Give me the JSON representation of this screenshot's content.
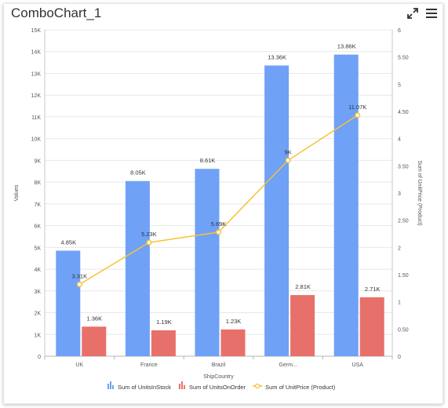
{
  "widget": {
    "title": "ComboChart_1"
  },
  "toolbar": {
    "expand_icon": "expand-icon",
    "menu_icon": "hamburger-menu-icon"
  },
  "chart_data": {
    "type": "bar",
    "categories": [
      "UK",
      "France",
      "Brazil",
      "Germ...",
      "USA"
    ],
    "xlabel": "ShipCountry",
    "ylabel": "Values",
    "y2label": "Sum of UnitPrice (Product)",
    "ylim": [
      0,
      15000
    ],
    "y2lim": [
      0,
      6
    ],
    "yticks": [
      "0",
      "1K",
      "2K",
      "3K",
      "4K",
      "5K",
      "6K",
      "7K",
      "8K",
      "9K",
      "10K",
      "11K",
      "12K",
      "13K",
      "14K",
      "15K"
    ],
    "y2ticks": [
      "0",
      "0.50",
      "1",
      "1.50",
      "2",
      "2.50",
      "3",
      "3.50",
      "4",
      "4.50",
      "5",
      "5.50",
      "6"
    ],
    "grid": true,
    "legend_position": "bottom",
    "series": [
      {
        "name": "Sum of UnitsInStock",
        "type": "bar",
        "axis": "primary",
        "color": "#6fa1f6",
        "values": [
          4850,
          8050,
          8610,
          13360,
          13860
        ],
        "labels": [
          "4.85K",
          "8.05K",
          "8.61K",
          "13.36K",
          "13.86K"
        ]
      },
      {
        "name": "Sum of UnitsOnOrder",
        "type": "bar",
        "axis": "primary",
        "color": "#e7716a",
        "values": [
          1360,
          1190,
          1230,
          2810,
          2710
        ],
        "labels": [
          "1.36K",
          "1.19K",
          "1.23K",
          "2.81K",
          "2.71K"
        ]
      },
      {
        "name": "Sum of UnitPrice (Product)",
        "type": "line",
        "axis": "secondary",
        "color": "#f4c430",
        "values": [
          1.32,
          2.09,
          2.28,
          3.6,
          4.43
        ],
        "labels": [
          "3.31K",
          "5.23K",
          "5.69K",
          "9K",
          "11.07K"
        ]
      }
    ]
  }
}
